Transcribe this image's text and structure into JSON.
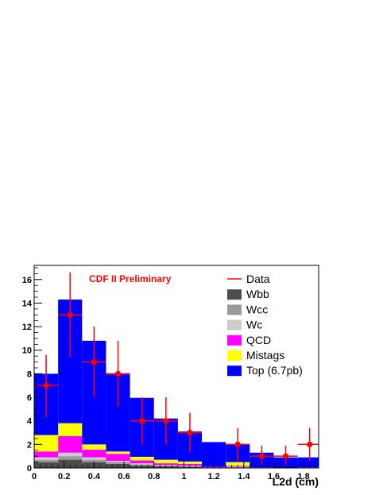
{
  "chart_data": {
    "type": "bar",
    "stacked": true,
    "annotation": "CDF II Preliminary",
    "xlabel": "L2d (cm)",
    "ylabel": "",
    "xlim": [
      0,
      1.9
    ],
    "ylim": [
      0,
      17.2
    ],
    "x_ticks": [
      "0",
      "0.2",
      "0.4",
      "0.6",
      "0.8",
      "1",
      "1.2",
      "1.4",
      "1.6",
      "1.8"
    ],
    "y_ticks": [
      "0",
      "2",
      "4",
      "6",
      "8",
      "10",
      "12",
      "14",
      "16"
    ],
    "bin_edges": [
      0,
      0.16,
      0.32,
      0.48,
      0.64,
      0.8,
      0.96,
      1.12,
      1.28,
      1.44,
      1.6,
      1.76,
      1.9
    ],
    "legend_position": "top-right",
    "series": [
      {
        "name": "Wbb",
        "color": "#4d4d4d",
        "values": [
          0.5,
          0.7,
          0.5,
          0.35,
          0.2,
          0.15,
          0.1,
          0.05,
          0.05,
          0.0,
          0.0,
          0.0
        ]
      },
      {
        "name": "Wcc",
        "color": "#999999",
        "values": [
          0.2,
          0.3,
          0.2,
          0.15,
          0.1,
          0.05,
          0.05,
          0.0,
          0.05,
          0.0,
          0.0,
          0.0
        ]
      },
      {
        "name": "Wc",
        "color": "#cccccc",
        "values": [
          0.2,
          0.3,
          0.2,
          0.1,
          0.1,
          0.05,
          0.05,
          0.0,
          0.05,
          0.0,
          0.0,
          0.0
        ]
      },
      {
        "name": "QCD",
        "color": "#ff00ff",
        "values": [
          0.5,
          1.4,
          0.65,
          0.6,
          0.25,
          0.15,
          0.15,
          0.05,
          0.05,
          0.05,
          0.0,
          0.05
        ]
      },
      {
        "name": "Mistags",
        "color": "#ffff00",
        "values": [
          1.4,
          1.1,
          0.45,
          0.2,
          0.3,
          0.3,
          0.2,
          0.0,
          0.3,
          0.0,
          0.0,
          0.0
        ]
      },
      {
        "name": "Top (6.7pb)",
        "color": "#0000ff",
        "values": [
          5.2,
          10.5,
          8.8,
          6.55,
          5.0,
          3.5,
          2.55,
          2.1,
          1.5,
          1.25,
          0.9,
          0.85
        ]
      }
    ],
    "data": {
      "name": "Data",
      "color": "#ff0000",
      "points": [
        {
          "x": 0.08,
          "y": 7,
          "ylo": 4.3,
          "yhi": 9.6
        },
        {
          "x": 0.24,
          "y": 13,
          "ylo": 9.4,
          "yhi": 16.6
        },
        {
          "x": 0.4,
          "y": 9,
          "ylo": 6.0,
          "yhi": 12.0
        },
        {
          "x": 0.56,
          "y": 8,
          "ylo": 5.2,
          "yhi": 10.8
        },
        {
          "x": 0.72,
          "y": 4,
          "ylo": 2.0,
          "yhi": 6.0
        },
        {
          "x": 0.88,
          "y": 4,
          "ylo": 2.0,
          "yhi": 6.0
        },
        {
          "x": 1.04,
          "y": 3,
          "ylo": 1.3,
          "yhi": 4.7
        },
        {
          "x": 1.36,
          "y": 2,
          "ylo": 0.6,
          "yhi": 3.4
        },
        {
          "x": 1.52,
          "y": 1,
          "ylo": 0.2,
          "yhi": 1.9
        },
        {
          "x": 1.68,
          "y": 1,
          "ylo": 0.2,
          "yhi": 1.9
        },
        {
          "x": 1.84,
          "y": 2,
          "ylo": 0.6,
          "yhi": 3.4
        }
      ]
    }
  }
}
